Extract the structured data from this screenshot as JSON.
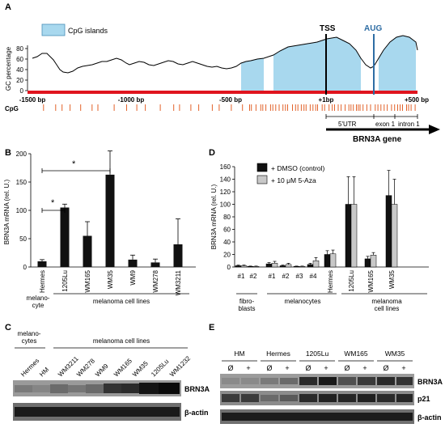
{
  "panelA": {
    "letter": "A",
    "legend_label": "CpG islands",
    "ylabel": "GC percentage",
    "yticks": [
      "0",
      "20",
      "40",
      "60",
      "80"
    ],
    "xticks": [
      "-1500 bp",
      "-1000 bp",
      "-500 bp",
      "+1bp",
      "+500 bp"
    ],
    "tss_label": "TSS",
    "aug_label": "AUG",
    "cpg_row_label": "CpG",
    "utr_label": "5'UTR",
    "exon_label": "exon 1",
    "intron_label": "intron 1",
    "gene_label": "BRN3A gene",
    "colors": {
      "island": "#a8d8ee",
      "aug": "#2e6da4",
      "baseline": "#e0141e",
      "cpg": "#e2622a"
    }
  },
  "panelB": {
    "letter": "B",
    "ylabel": "BRN3A mRNA (rel. U.)",
    "yticks": [
      "0",
      "50",
      "100",
      "150",
      "200"
    ],
    "sig1": "*",
    "sig2": "*",
    "group_melanocyte": "melano-\ncyte",
    "group_melanocyte_l1": "melano-",
    "group_melanocyte_l2": "cyte",
    "group_melanoma": "melanoma cell lines"
  },
  "panelD": {
    "letter": "D",
    "ylabel": "BRN3A mRNA (rel. U.)",
    "yticks": [
      "0",
      "20",
      "40",
      "60",
      "80",
      "100",
      "120",
      "140",
      "160"
    ],
    "legend_dmso": "+ DMSO (control)",
    "legend_aza": "+ 10 μM 5-Aza",
    "group_fibroblasts_l1": "fibro-",
    "group_fibroblasts_l2": "blasts",
    "group_melanocytes": "melanocytes",
    "group_melanoma_l1": "melanoma",
    "group_melanoma_l2": "cell lines"
  },
  "panelC": {
    "letter": "C",
    "group_melanocytes_l1": "melano-",
    "group_melanocytes_l2": "cytes",
    "group_melanoma": "melanoma cell lines",
    "lanes": [
      "Hermes",
      "HM",
      "WM3211",
      "WM278",
      "WM9",
      "WM165",
      "WM35",
      "1205Lu",
      "WM1232"
    ],
    "row_brn3a": "BRN3A",
    "row_actin": "β-actin"
  },
  "panelE": {
    "letter": "E",
    "groups": [
      "HM",
      "Hermes",
      "1205Lu",
      "WM165",
      "WM35"
    ],
    "treat_minus": "Ø",
    "treat_plus": "+",
    "row_brn3a": "BRN3A",
    "row_p21": "p21",
    "row_actin": "β-actin"
  },
  "chart_data": [
    {
      "type": "bar",
      "panel": "B",
      "ylabel": "BRN3A mRNA (rel. U.)",
      "ylim": [
        0,
        200
      ],
      "categories": [
        "Hermes",
        "1205Lu",
        "WM165",
        "WM35",
        "WM9",
        "WM278",
        "WM3211"
      ],
      "values": [
        10,
        105,
        55,
        163,
        13,
        8,
        40
      ],
      "errors": [
        3,
        6,
        25,
        42,
        8,
        6,
        45
      ]
    },
    {
      "type": "bar",
      "panel": "D",
      "ylabel": "BRN3A mRNA (rel. U.)",
      "ylim": [
        0,
        160
      ],
      "categories": [
        "#1",
        "#2",
        "#1",
        "#2",
        "#3",
        "#4",
        "Hermes",
        "1205Lu",
        "WM165",
        "WM35"
      ],
      "series": [
        {
          "name": "+ DMSO (control)",
          "color": "#111111",
          "values": [
            2,
            1,
            5,
            2,
            1,
            4,
            20,
            100,
            13,
            114
          ],
          "errors": [
            1,
            0.5,
            2,
            1,
            0.5,
            2,
            6,
            44,
            4,
            40
          ]
        },
        {
          "name": "+ 10 μM 5-Aza",
          "color": "#c8c8c8",
          "values": [
            2,
            1,
            6,
            4,
            1,
            10,
            21,
            100,
            19,
            100
          ],
          "errors": [
            1,
            0.5,
            3,
            2,
            0.5,
            5,
            6,
            44,
            4,
            40
          ]
        }
      ]
    }
  ]
}
